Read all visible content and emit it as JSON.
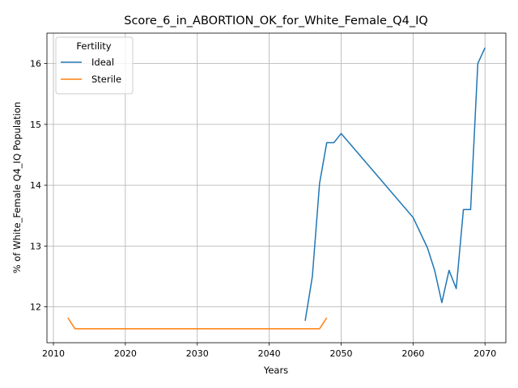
{
  "chart_data": {
    "type": "line",
    "title": "Score_6_in_ABORTION_OK_for_White_Female_Q4_IQ",
    "xlabel": "Years",
    "ylabel": "% of White_Female Q4_IQ Population",
    "xlim": [
      2009.1,
      2072.9
    ],
    "ylim": [
      11.41,
      16.5
    ],
    "xticks": [
      2010,
      2020,
      2030,
      2040,
      2050,
      2060,
      2070
    ],
    "yticks": [
      12,
      13,
      14,
      15,
      16
    ],
    "grid": true,
    "legend": {
      "title": "Fertility",
      "position": "top-left"
    },
    "series": [
      {
        "name": "Ideal",
        "color": "#1f77b4",
        "points": [
          [
            2045,
            11.77
          ],
          [
            2046,
            12.5
          ],
          [
            2047,
            14.03
          ],
          [
            2048,
            14.7
          ],
          [
            2049,
            14.7
          ],
          [
            2050,
            14.85
          ],
          [
            2060,
            13.47
          ],
          [
            2062,
            12.97
          ],
          [
            2063,
            12.6
          ],
          [
            2064,
            12.07
          ],
          [
            2065,
            12.6
          ],
          [
            2066,
            12.3
          ],
          [
            2067,
            13.6
          ],
          [
            2068,
            13.6
          ],
          [
            2069,
            16.0
          ],
          [
            2070,
            16.26
          ]
        ]
      },
      {
        "name": "Sterile",
        "color": "#ff7f0e",
        "points": [
          [
            2012,
            11.82
          ],
          [
            2013,
            11.64
          ],
          [
            2047,
            11.64
          ],
          [
            2048,
            11.82
          ]
        ]
      }
    ]
  }
}
